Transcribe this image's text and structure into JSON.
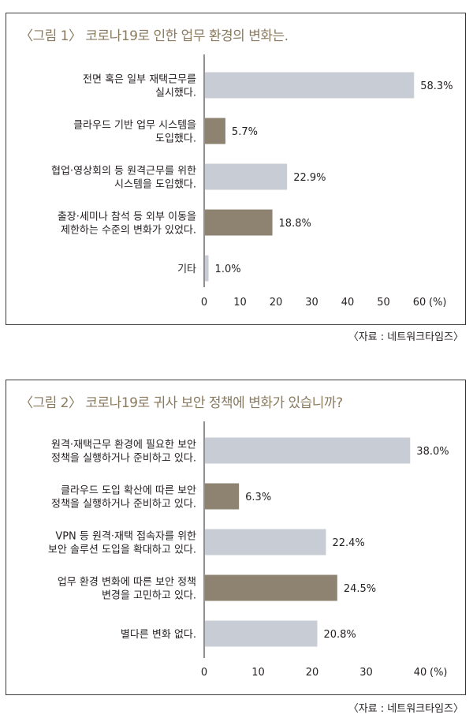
{
  "colors": {
    "light_bar": "#c8ccd4",
    "dark_bar": "#8d8370",
    "title": "#8a7a5e",
    "axis": "#231f20"
  },
  "chart_data": [
    {
      "type": "bar",
      "orientation": "horizontal",
      "title": "〈그림 1〉 코로나19로 인한 업무 환경의 변화는.",
      "source": "〈자료 : 네트워크타임즈〉",
      "categories": [
        [
          "전면 혹은 일부 재택근무를",
          "실시했다."
        ],
        [
          "클라우드 기반 업무 시스템을",
          "도입했다."
        ],
        [
          "협업·영상회의 등 원격근무를 위한",
          "시스템을 도입했다."
        ],
        [
          "출장·세미나 참석 등 외부 이동을",
          "제한하는 수준의 변화가 있었다."
        ],
        [
          "기타"
        ]
      ],
      "values": [
        58.3,
        5.7,
        22.9,
        18.8,
        1.0
      ],
      "value_labels": [
        "58.3%",
        "5.7%",
        "22.9%",
        "18.8%",
        "1.0%"
      ],
      "bar_styles": [
        "light",
        "dark",
        "light",
        "dark",
        "light"
      ],
      "xlim": [
        0,
        60
      ],
      "xticks": [
        "0",
        "10",
        "20",
        "30",
        "40",
        "50",
        "60"
      ],
      "unit_label": "(%)"
    },
    {
      "type": "bar",
      "orientation": "horizontal",
      "title": "〈그림 2〉 코로나19로 귀사 보안 정책에 변화가 있습니까?",
      "source": "〈자료 : 네트워크타임즈〉",
      "categories": [
        [
          "원격·재택근무 환경에 필요한 보안",
          "정책을 실행하거나 준비하고 있다."
        ],
        [
          "클라우드 도입 확산에 따른 보안",
          "정책을 실행하거나 준비하고 있다."
        ],
        [
          "VPN 등 원격·재택 접속자를 위한",
          "보안 솔루션 도입을 확대하고 있다."
        ],
        [
          "업무 환경 변화에 따른 보안 정책",
          "변경을 고민하고 있다."
        ],
        [
          "별다른 변화 없다."
        ]
      ],
      "values": [
        38.0,
        6.3,
        22.4,
        24.5,
        20.8
      ],
      "value_labels": [
        "38.0%",
        "6.3%",
        "22.4%",
        "24.5%",
        "20.8%"
      ],
      "bar_styles": [
        "light",
        "dark",
        "light",
        "dark",
        "light"
      ],
      "xlim": [
        0,
        40
      ],
      "xticks": [
        "0",
        "10",
        "20",
        "30",
        "40"
      ],
      "unit_label": "(%)"
    }
  ]
}
